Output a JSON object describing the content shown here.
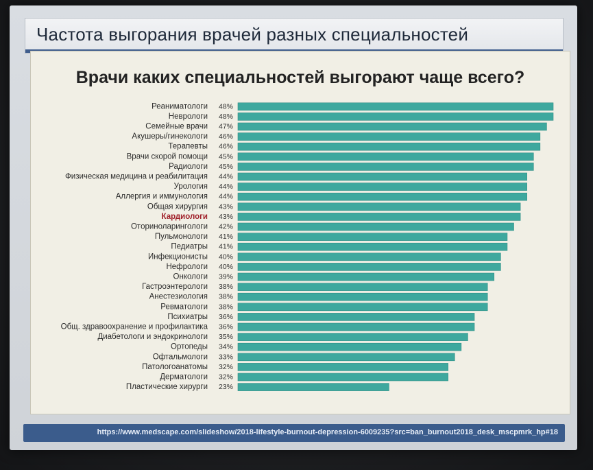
{
  "slide": {
    "title": "Частота выгорания врачей разных специальностей",
    "question": "Врачи каких специальностей выгорают чаще всего?",
    "source_url": "https://www.medscape.com/slideshow/2018-lifestyle-burnout-depression-6009235?src=ban_burnout2018_desk_mscpmrk_hp#18"
  },
  "colors": {
    "bar": "#3ea89e",
    "bar_edge": "#2f8f86",
    "highlight_label": "#a0202a",
    "accent_bar": "#3f5d8d"
  },
  "chart_data": {
    "type": "bar",
    "orientation": "horizontal",
    "title": "Врачи каких специальностей выгорают чаще всего?",
    "value_suffix": "%",
    "highlight": "Кардиологи",
    "xlim": [
      0,
      48
    ],
    "categories": [
      "Реаниматологи",
      "Неврологи",
      "Семейные врачи",
      "Акушеры/гинекологи",
      "Терапевты",
      "Врачи скорой помощи",
      "Радиологи",
      "Физическая медицина и реабилитация",
      "Урология",
      "Аллергия и иммунология",
      "Общая хирургия",
      "Кардиологи",
      "Оториноларингологи",
      "Пульмонологи",
      "Педиатры",
      "Инфекционисты",
      "Нефрологи",
      "Онкологи",
      "Гастроэнтерологи",
      "Анестезиология",
      "Ревматологи",
      "Психиатры",
      "Общ. здравоохранение и профилактика",
      "Диабетологи и эндокринологи",
      "Ортопеды",
      "Офтальмологи",
      "Патологоанатомы",
      "Дерматологи",
      "Пластические хирурги"
    ],
    "values": [
      48,
      48,
      47,
      46,
      46,
      45,
      45,
      44,
      44,
      44,
      43,
      43,
      42,
      41,
      41,
      40,
      40,
      39,
      38,
      38,
      38,
      36,
      36,
      35,
      34,
      33,
      32,
      32,
      23
    ]
  }
}
